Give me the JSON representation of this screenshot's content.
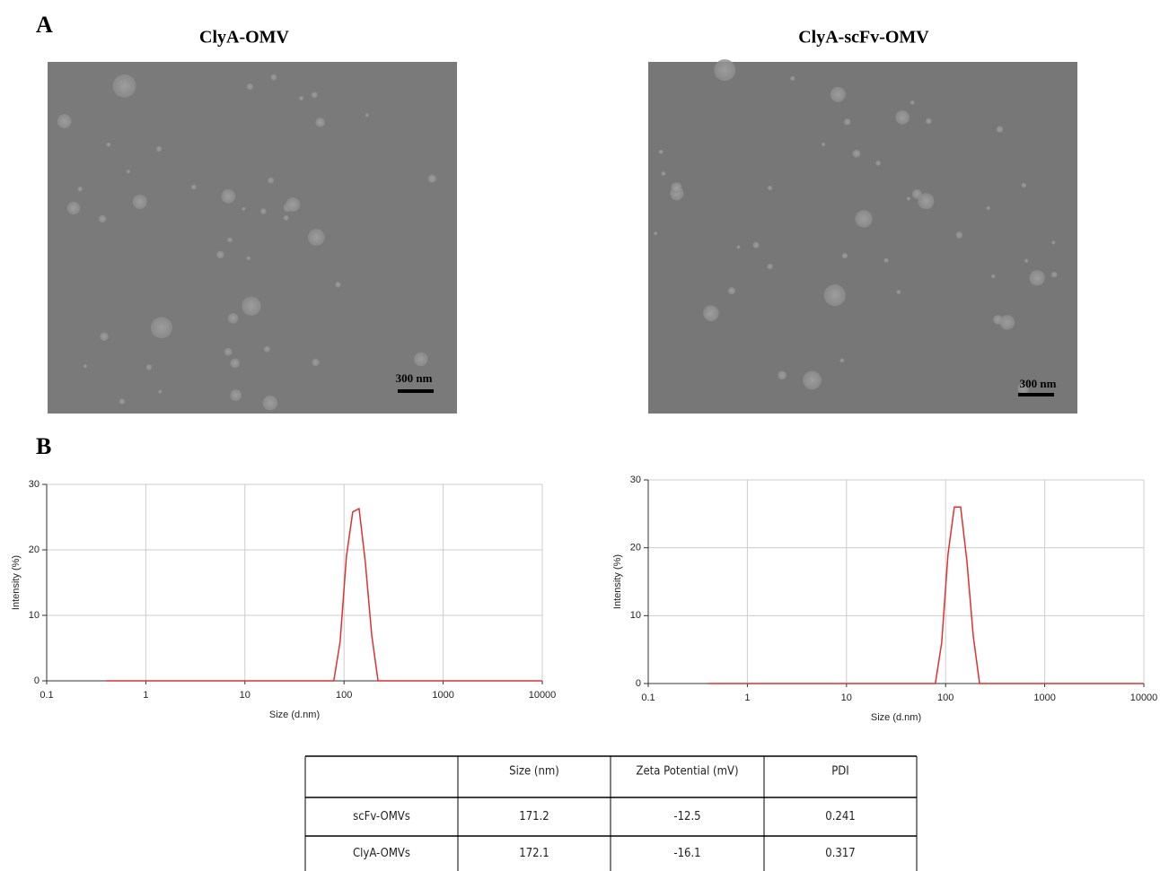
{
  "panel_labels": [
    "A",
    "B"
  ],
  "images": [
    {
      "title": "ClyA-OMV",
      "scale_bar": "300 nm"
    },
    {
      "title": "ClyA-scFv-OMV",
      "scale_bar": "300 nm"
    }
  ],
  "chart_data": [
    {
      "type": "line",
      "xlabel": "Size (d.nm)",
      "ylabel": "Intensity (%)",
      "log_x": true,
      "grid": true,
      "color": "#e03030",
      "xlim": [
        0.1,
        10000
      ],
      "ylim": [
        0,
        30
      ],
      "xticks": [
        0.1,
        1,
        10,
        100,
        1000,
        10000
      ],
      "yticks": [
        0,
        10,
        20,
        30
      ],
      "x": [
        0.4,
        1,
        10,
        78.8,
        91.3,
        105.7,
        122.4,
        141.8,
        164.2,
        190.1,
        220.2,
        1000,
        10000
      ],
      "values": [
        0,
        0,
        0,
        0,
        6,
        19,
        25.8,
        26.3,
        18,
        7,
        0,
        0,
        0
      ]
    },
    {
      "type": "line",
      "xlabel": "Size (d.nm)",
      "ylabel": "Intensity (%)",
      "log_x": true,
      "grid": true,
      "color": "#e03030",
      "xlim": [
        0.1,
        10000
      ],
      "ylim": [
        0,
        30
      ],
      "xticks": [
        0.1,
        1,
        10,
        100,
        1000,
        10000
      ],
      "yticks": [
        0,
        10,
        20,
        30
      ],
      "x": [
        0.4,
        1,
        10,
        78.8,
        91.3,
        105.7,
        122.4,
        141.8,
        164.2,
        190.1,
        220.2,
        1000,
        10000
      ],
      "values": [
        0,
        0,
        0,
        0,
        6,
        19,
        26,
        26,
        18,
        7,
        0,
        0,
        0
      ]
    }
  ],
  "table": {
    "header": [
      "Size (nm)",
      "Zeta Potential (mV)",
      "PDI"
    ],
    "rows": [
      [
        "scFv-OMVs",
        171.2,
        -12.5,
        0.241
      ],
      [
        "ClyA-OMVs",
        172.1,
        -16.1,
        0.317
      ]
    ]
  }
}
